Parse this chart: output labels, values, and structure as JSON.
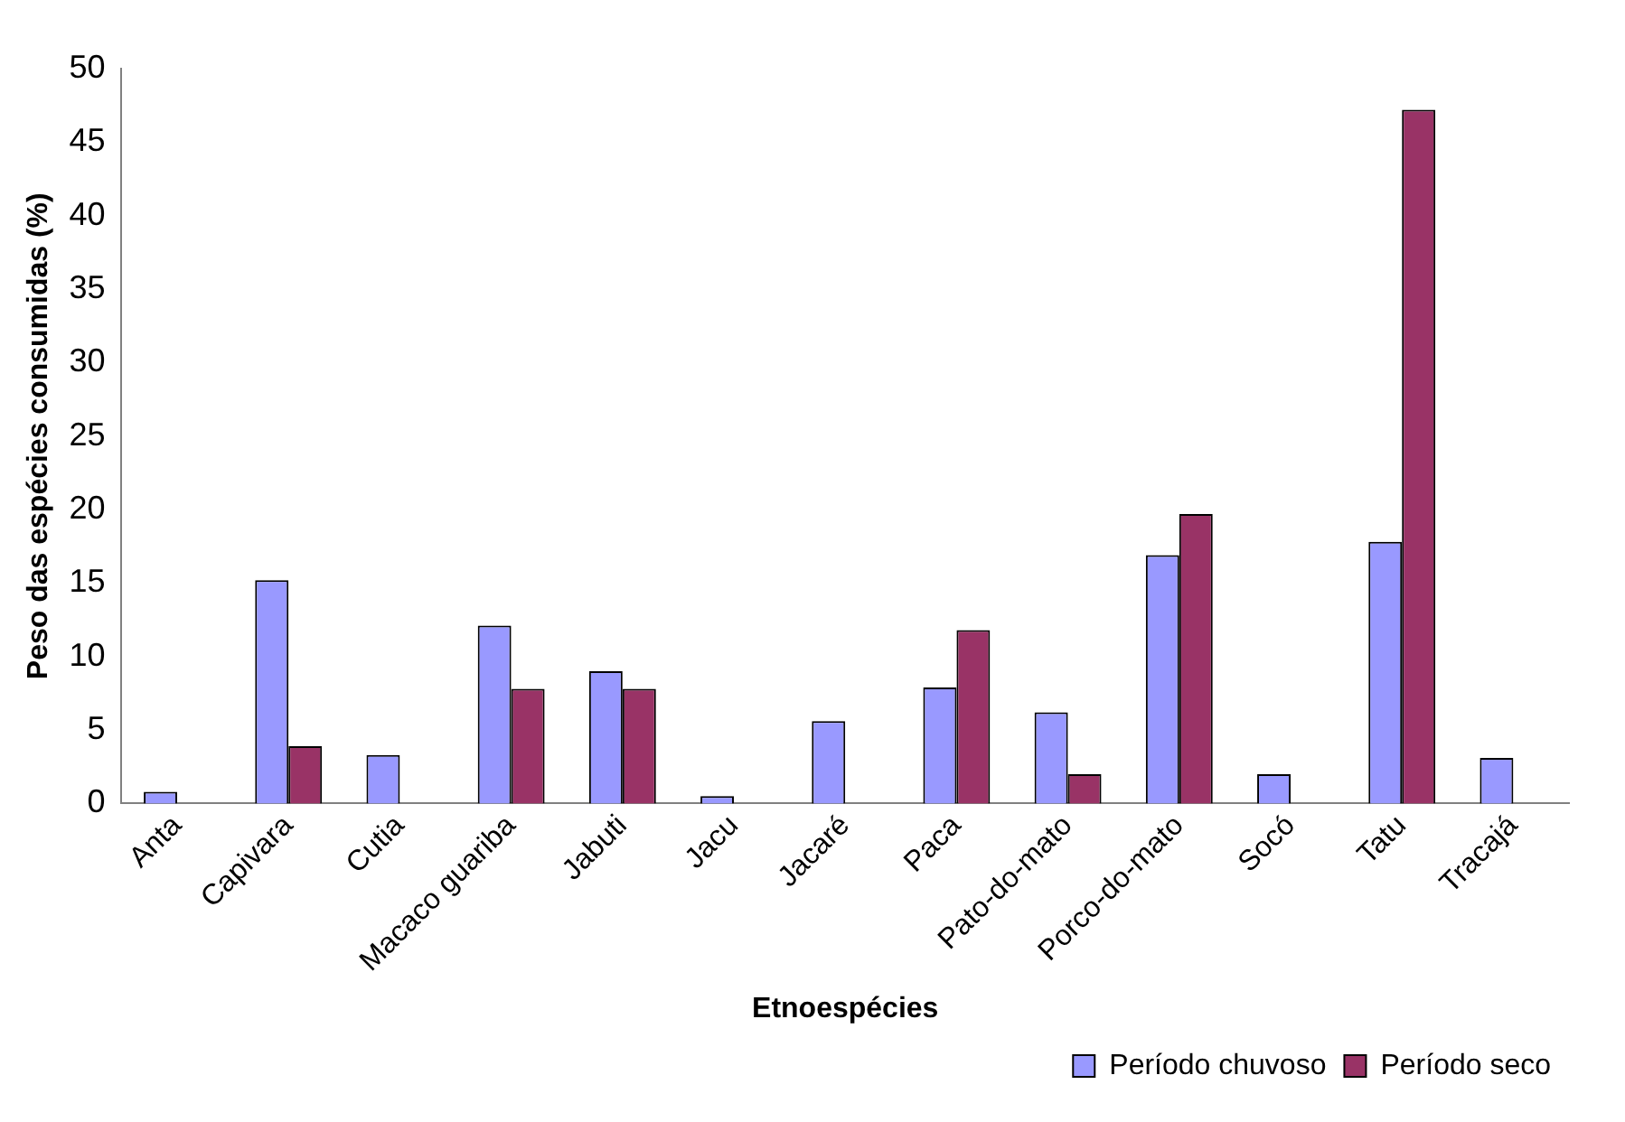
{
  "chart_data": {
    "type": "bar",
    "xlabel": "Etnoespécies",
    "ylabel": "Peso das espécies consumidas (%)",
    "categories": [
      "Anta",
      "Capivara",
      "Cutia",
      "Macaco guariba",
      "Jabuti",
      "Jacu",
      "Jacaré",
      "Paca",
      "Pato-do-mato",
      "Porco-do-mato",
      "Socó",
      "Tatu",
      "Tracajá"
    ],
    "series": [
      {
        "name": "Período chuvoso",
        "color": "#9999ff",
        "values": [
          0.8,
          15.2,
          3.3,
          12.1,
          9,
          0.5,
          5.6,
          7.9,
          6.2,
          16.9,
          2,
          17.8,
          3.1
        ]
      },
      {
        "name": "Período seco",
        "color": "#993366",
        "values": [
          null,
          3.9,
          null,
          7.8,
          7.8,
          null,
          null,
          11.8,
          2,
          19.7,
          null,
          47.2,
          null
        ]
      }
    ],
    "ylim": [
      0,
      50
    ],
    "yticks": [
      0,
      5,
      10,
      15,
      20,
      25,
      30,
      35,
      40,
      45,
      50
    ],
    "grid": false,
    "legend": "bottom right"
  }
}
